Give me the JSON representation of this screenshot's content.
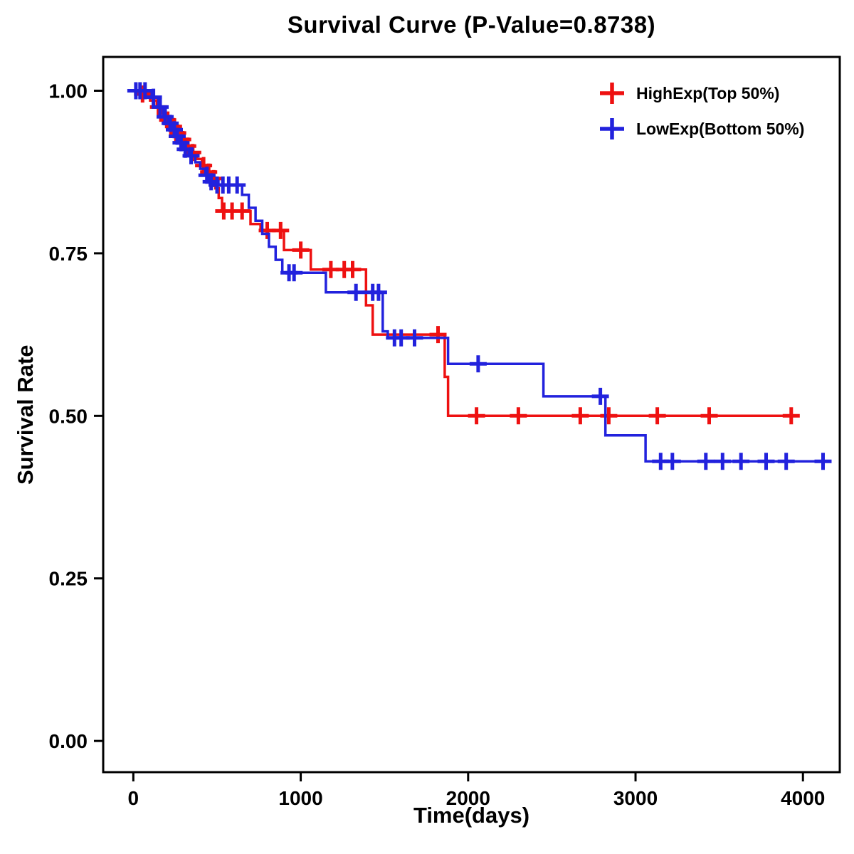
{
  "title": "Survival Curve (P-Value=0.8738)",
  "xlabel": "Time(days)",
  "ylabel": "Survival Rate",
  "chart_data": {
    "type": "line",
    "subtype": "kaplan-meier-step-function",
    "title": "Survival Curve (P-Value=0.8738)",
    "xlabel": "Time(days)",
    "ylabel": "Survival Rate",
    "xlim": [
      -180,
      4220
    ],
    "ylim": [
      -0.048,
      1.052
    ],
    "xticks": [
      0,
      1000,
      2000,
      3000,
      4000
    ],
    "yticks": [
      "0.00",
      "0.25",
      "0.50",
      "0.75",
      "1.00"
    ],
    "grid": false,
    "legend_position": "top-right-inside",
    "p_value": "0.8738",
    "series": [
      {
        "name": "HighExp(Top 50%)",
        "color": "#EE1111",
        "steps": [
          [
            0,
            1.0
          ],
          [
            60,
            0.995
          ],
          [
            100,
            0.985
          ],
          [
            140,
            0.975
          ],
          [
            170,
            0.965
          ],
          [
            200,
            0.955
          ],
          [
            230,
            0.945
          ],
          [
            260,
            0.935
          ],
          [
            290,
            0.925
          ],
          [
            320,
            0.915
          ],
          [
            350,
            0.905
          ],
          [
            380,
            0.895
          ],
          [
            410,
            0.885
          ],
          [
            440,
            0.875
          ],
          [
            470,
            0.865
          ],
          [
            490,
            0.85
          ],
          [
            510,
            0.835
          ],
          [
            530,
            0.815
          ],
          [
            700,
            0.795
          ],
          [
            760,
            0.785
          ],
          [
            900,
            0.755
          ],
          [
            1060,
            0.725
          ],
          [
            1390,
            0.67
          ],
          [
            1430,
            0.625
          ],
          [
            1860,
            0.56
          ],
          [
            1880,
            0.5
          ],
          [
            3950,
            0.5
          ]
        ],
        "censors": [
          [
            55,
            0.995
          ],
          [
            150,
            0.975
          ],
          [
            205,
            0.955
          ],
          [
            240,
            0.945
          ],
          [
            265,
            0.935
          ],
          [
            295,
            0.925
          ],
          [
            325,
            0.915
          ],
          [
            355,
            0.905
          ],
          [
            420,
            0.885
          ],
          [
            450,
            0.875
          ],
          [
            480,
            0.865
          ],
          [
            540,
            0.815
          ],
          [
            590,
            0.815
          ],
          [
            650,
            0.815
          ],
          [
            800,
            0.785
          ],
          [
            880,
            0.785
          ],
          [
            1000,
            0.755
          ],
          [
            1180,
            0.725
          ],
          [
            1260,
            0.725
          ],
          [
            1310,
            0.725
          ],
          [
            1820,
            0.625
          ],
          [
            2050,
            0.5
          ],
          [
            2300,
            0.5
          ],
          [
            2670,
            0.5
          ],
          [
            2840,
            0.5
          ],
          [
            3130,
            0.5
          ],
          [
            3440,
            0.5
          ],
          [
            3930,
            0.5
          ]
        ]
      },
      {
        "name": "LowExp(Bottom 50%)",
        "color": "#2222DD",
        "steps": [
          [
            0,
            1.0
          ],
          [
            110,
            0.99
          ],
          [
            150,
            0.975
          ],
          [
            180,
            0.96
          ],
          [
            210,
            0.95
          ],
          [
            235,
            0.94
          ],
          [
            255,
            0.93
          ],
          [
            275,
            0.92
          ],
          [
            300,
            0.91
          ],
          [
            330,
            0.9
          ],
          [
            370,
            0.89
          ],
          [
            400,
            0.88
          ],
          [
            430,
            0.87
          ],
          [
            455,
            0.86
          ],
          [
            480,
            0.855
          ],
          [
            650,
            0.84
          ],
          [
            690,
            0.82
          ],
          [
            730,
            0.8
          ],
          [
            770,
            0.78
          ],
          [
            810,
            0.76
          ],
          [
            850,
            0.74
          ],
          [
            890,
            0.72
          ],
          [
            1150,
            0.69
          ],
          [
            1490,
            0.63
          ],
          [
            1520,
            0.62
          ],
          [
            1880,
            0.58
          ],
          [
            2450,
            0.53
          ],
          [
            2820,
            0.47
          ],
          [
            3060,
            0.43
          ],
          [
            4150,
            0.43
          ]
        ],
        "censors": [
          [
            15,
            1.0
          ],
          [
            40,
            1.0
          ],
          [
            70,
            1.0
          ],
          [
            120,
            0.99
          ],
          [
            160,
            0.975
          ],
          [
            190,
            0.96
          ],
          [
            220,
            0.95
          ],
          [
            245,
            0.94
          ],
          [
            262,
            0.93
          ],
          [
            285,
            0.92
          ],
          [
            310,
            0.91
          ],
          [
            345,
            0.9
          ],
          [
            440,
            0.87
          ],
          [
            465,
            0.86
          ],
          [
            500,
            0.855
          ],
          [
            535,
            0.855
          ],
          [
            570,
            0.855
          ],
          [
            620,
            0.855
          ],
          [
            930,
            0.72
          ],
          [
            960,
            0.72
          ],
          [
            1330,
            0.69
          ],
          [
            1430,
            0.69
          ],
          [
            1465,
            0.69
          ],
          [
            1560,
            0.62
          ],
          [
            1600,
            0.62
          ],
          [
            1680,
            0.62
          ],
          [
            2060,
            0.58
          ],
          [
            2790,
            0.53
          ],
          [
            3150,
            0.43
          ],
          [
            3220,
            0.43
          ],
          [
            3420,
            0.43
          ],
          [
            3520,
            0.43
          ],
          [
            3630,
            0.43
          ],
          [
            3780,
            0.43
          ],
          [
            3900,
            0.43
          ],
          [
            4120,
            0.43
          ]
        ]
      }
    ]
  }
}
